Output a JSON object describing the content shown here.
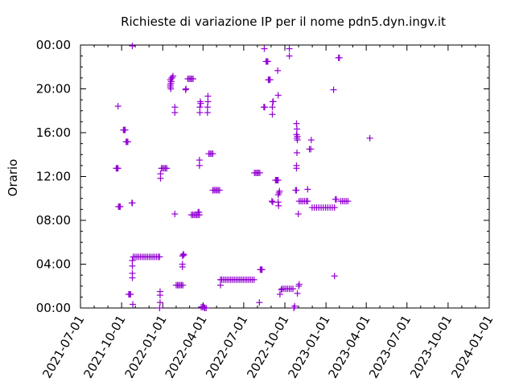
{
  "chart_data": {
    "type": "scatter",
    "title": "Richieste di variazione IP per il nome pdn5.dyn.ingv.it",
    "xlabel": "",
    "ylabel": "Orario",
    "x_ticks": [
      "2021-07-01",
      "2021-10-01",
      "2022-01-01",
      "2022-04-01",
      "2022-07-01",
      "2022-10-01",
      "2023-01-01",
      "2023-04-01",
      "2023-07-01",
      "2023-10-01",
      "2024-01-01"
    ],
    "y_ticks": [
      "00:00",
      "04:00",
      "08:00",
      "12:00",
      "16:00",
      "20:00",
      "00:00"
    ],
    "xlim": [
      "2021-07-01",
      "2024-01-01"
    ],
    "ylim": [
      0,
      24
    ],
    "grid": false,
    "color": "#9400d3",
    "series": [
      {
        "points": [
          [
            "2021-09-19",
            "12:45"
          ],
          [
            "2021-09-21",
            "12:45"
          ],
          [
            "2021-09-23",
            "12:45"
          ],
          [
            "2021-09-23",
            "18:25"
          ],
          [
            "2021-09-24",
            "09:15"
          ],
          [
            "2021-09-26",
            "09:15"
          ],
          [
            "2021-09-28",
            "09:15"
          ],
          [
            "2021-10-05",
            "16:15"
          ],
          [
            "2021-10-07",
            "16:15"
          ],
          [
            "2021-10-09",
            "16:15"
          ],
          [
            "2021-10-11",
            "15:10"
          ],
          [
            "2021-10-13",
            "15:10"
          ],
          [
            "2021-10-15",
            "15:10"
          ],
          [
            "2021-10-17",
            "01:15"
          ],
          [
            "2021-10-19",
            "01:15"
          ],
          [
            "2021-10-21",
            "01:15"
          ],
          [
            "2021-10-24",
            "09:35"
          ],
          [
            "2021-10-25",
            "09:35"
          ],
          [
            "2021-10-25",
            "23:55"
          ],
          [
            "2021-10-26",
            "00:20"
          ],
          [
            "2021-10-25",
            "04:20"
          ],
          [
            "2021-10-25",
            "03:50"
          ],
          [
            "2021-10-25",
            "03:10"
          ],
          [
            "2021-10-25",
            "02:45"
          ],
          [
            "2021-10-27",
            "04:40"
          ],
          [
            "2021-10-31",
            "04:40"
          ],
          [
            "2021-11-04",
            "04:40"
          ],
          [
            "2021-11-08",
            "04:40"
          ],
          [
            "2021-11-12",
            "04:40"
          ],
          [
            "2021-11-16",
            "04:40"
          ],
          [
            "2021-11-20",
            "04:40"
          ],
          [
            "2021-11-24",
            "04:40"
          ],
          [
            "2021-11-28",
            "04:40"
          ],
          [
            "2021-12-02",
            "04:40"
          ],
          [
            "2021-12-06",
            "04:40"
          ],
          [
            "2021-12-10",
            "04:40"
          ],
          [
            "2021-12-14",
            "04:40"
          ],
          [
            "2021-12-18",
            "04:40"
          ],
          [
            "2021-12-22",
            "04:40"
          ],
          [
            "2021-12-25",
            "04:40"
          ],
          [
            "2021-12-25",
            "00:00"
          ],
          [
            "2021-12-26",
            "01:30"
          ],
          [
            "2021-12-26",
            "01:10"
          ],
          [
            "2021-12-26",
            "00:30"
          ],
          [
            "2021-12-27",
            "12:15"
          ],
          [
            "2021-12-27",
            "11:50"
          ],
          [
            "2021-12-29",
            "12:45"
          ],
          [
            "2022-01-01",
            "12:45"
          ],
          [
            "2022-01-04",
            "12:45"
          ],
          [
            "2022-01-07",
            "12:45"
          ],
          [
            "2022-01-10",
            "12:45"
          ],
          [
            "2022-01-18",
            "20:20"
          ],
          [
            "2022-01-18",
            "20:50"
          ],
          [
            "2022-01-18",
            "20:10"
          ],
          [
            "2022-01-19",
            "20:30"
          ],
          [
            "2022-01-19",
            "20:00"
          ],
          [
            "2022-01-20",
            "20:40"
          ],
          [
            "2022-01-21",
            "21:00"
          ],
          [
            "2022-01-22",
            "21:00"
          ],
          [
            "2022-01-24",
            "21:10"
          ],
          [
            "2022-01-28",
            "08:35"
          ],
          [
            "2022-01-28",
            "18:20"
          ],
          [
            "2022-01-28",
            "17:50"
          ],
          [
            "2022-01-31",
            "02:05"
          ],
          [
            "2022-02-03",
            "02:05"
          ],
          [
            "2022-02-06",
            "02:05"
          ],
          [
            "2022-02-09",
            "02:05"
          ],
          [
            "2022-02-12",
            "02:05"
          ],
          [
            "2022-02-15",
            "02:05"
          ],
          [
            "2022-02-14",
            "04:45"
          ],
          [
            "2022-02-14",
            "04:00"
          ],
          [
            "2022-02-14",
            "03:45"
          ],
          [
            "2022-02-16",
            "04:55"
          ],
          [
            "2022-02-17",
            "04:50"
          ],
          [
            "2022-02-21",
            "19:55"
          ],
          [
            "2022-02-22",
            "20:00"
          ],
          [
            "2022-02-26",
            "20:55"
          ],
          [
            "2022-03-01",
            "20:55"
          ],
          [
            "2022-03-04",
            "20:55"
          ],
          [
            "2022-03-07",
            "20:55"
          ],
          [
            "2022-03-10",
            "20:55"
          ],
          [
            "2022-03-06",
            "08:30"
          ],
          [
            "2022-03-09",
            "08:30"
          ],
          [
            "2022-03-12",
            "08:30"
          ],
          [
            "2022-03-15",
            "08:30"
          ],
          [
            "2022-03-18",
            "08:30"
          ],
          [
            "2022-03-21",
            "08:30"
          ],
          [
            "2022-03-24",
            "08:30"
          ],
          [
            "2022-03-21",
            "08:45"
          ],
          [
            "2022-03-23",
            "08:45"
          ],
          [
            "2022-03-24",
            "13:00"
          ],
          [
            "2022-03-24",
            "13:30"
          ],
          [
            "2022-03-25",
            "18:20"
          ],
          [
            "2022-03-25",
            "17:50"
          ],
          [
            "2022-03-26",
            "18:50"
          ],
          [
            "2022-03-27",
            "18:40"
          ],
          [
            "2022-03-28",
            "00:05"
          ],
          [
            "2022-03-31",
            "00:05"
          ],
          [
            "2022-04-03",
            "00:05"
          ],
          [
            "2022-04-05",
            "00:00"
          ],
          [
            "2022-04-08",
            "00:00"
          ],
          [
            "2022-04-12",
            "19:20"
          ],
          [
            "2022-04-12",
            "18:50"
          ],
          [
            "2022-04-11",
            "18:20"
          ],
          [
            "2022-04-11",
            "17:50"
          ],
          [
            "2022-04-14",
            "14:05"
          ],
          [
            "2022-04-17",
            "14:05"
          ],
          [
            "2022-04-20",
            "14:05"
          ],
          [
            "2022-04-23",
            "14:05"
          ],
          [
            "2022-04-23",
            "10:45"
          ],
          [
            "2022-04-26",
            "10:45"
          ],
          [
            "2022-04-29",
            "10:45"
          ],
          [
            "2022-05-02",
            "10:45"
          ],
          [
            "2022-05-05",
            "10:45"
          ],
          [
            "2022-05-08",
            "10:45"
          ],
          [
            "2022-05-10",
            "02:05"
          ],
          [
            "2022-05-10",
            "02:35"
          ],
          [
            "2022-05-13",
            "02:35"
          ],
          [
            "2022-05-17",
            "02:35"
          ],
          [
            "2022-05-21",
            "02:35"
          ],
          [
            "2022-05-25",
            "02:35"
          ],
          [
            "2022-05-29",
            "02:35"
          ],
          [
            "2022-06-02",
            "02:35"
          ],
          [
            "2022-06-06",
            "02:35"
          ],
          [
            "2022-06-10",
            "02:35"
          ],
          [
            "2022-06-14",
            "02:35"
          ],
          [
            "2022-06-18",
            "02:35"
          ],
          [
            "2022-06-22",
            "02:35"
          ],
          [
            "2022-06-26",
            "02:35"
          ],
          [
            "2022-06-30",
            "02:35"
          ],
          [
            "2022-07-04",
            "02:35"
          ],
          [
            "2022-07-08",
            "02:35"
          ],
          [
            "2022-07-12",
            "02:35"
          ],
          [
            "2022-07-16",
            "02:35"
          ],
          [
            "2022-07-20",
            "02:35"
          ],
          [
            "2022-07-24",
            "02:35"
          ],
          [
            "2022-07-25",
            "12:20"
          ],
          [
            "2022-07-28",
            "12:20"
          ],
          [
            "2022-07-31",
            "12:20"
          ],
          [
            "2022-08-03",
            "12:20"
          ],
          [
            "2022-08-06",
            "12:20"
          ],
          [
            "2022-08-05",
            "00:30"
          ],
          [
            "2022-08-07",
            "03:30"
          ],
          [
            "2022-08-09",
            "03:30"
          ],
          [
            "2022-08-11",
            "03:30"
          ],
          [
            "2022-08-15",
            "18:20"
          ],
          [
            "2022-08-17",
            "18:20"
          ],
          [
            "2022-08-16",
            "23:40"
          ],
          [
            "2022-08-20",
            "22:30"
          ],
          [
            "2022-08-22",
            "22:30"
          ],
          [
            "2022-08-24",
            "22:30"
          ],
          [
            "2022-08-25",
            "20:50"
          ],
          [
            "2022-08-27",
            "20:50"
          ],
          [
            "2022-08-29",
            "20:50"
          ],
          [
            "2022-09-03",
            "18:20"
          ],
          [
            "2022-09-03",
            "17:40"
          ],
          [
            "2022-09-04",
            "18:50"
          ],
          [
            "2022-09-05",
            "18:50"
          ],
          [
            "2022-09-02",
            "09:45"
          ],
          [
            "2022-09-04",
            "09:40"
          ],
          [
            "2022-09-10",
            "11:40"
          ],
          [
            "2022-09-12",
            "11:40"
          ],
          [
            "2022-09-14",
            "11:40"
          ],
          [
            "2022-09-16",
            "11:40"
          ],
          [
            "2022-09-15",
            "21:40"
          ],
          [
            "2022-09-16",
            "19:25"
          ],
          [
            "2022-09-16",
            "10:20"
          ],
          [
            "2022-09-16",
            "09:40"
          ],
          [
            "2022-09-17",
            "09:20"
          ],
          [
            "2022-09-18",
            "10:30"
          ],
          [
            "2022-09-19",
            "10:40"
          ],
          [
            "2022-09-23",
            "01:40"
          ],
          [
            "2022-09-20",
            "01:15"
          ],
          [
            "2022-09-25",
            "01:45"
          ],
          [
            "2022-09-29",
            "01:45"
          ],
          [
            "2022-10-03",
            "01:45"
          ],
          [
            "2022-10-07",
            "01:45"
          ],
          [
            "2022-10-11",
            "01:45"
          ],
          [
            "2022-10-15",
            "01:45"
          ],
          [
            "2022-10-19",
            "01:45"
          ],
          [
            "2022-10-11",
            "23:40"
          ],
          [
            "2022-10-11",
            "23:00"
          ],
          [
            "2022-10-21",
            "00:00"
          ],
          [
            "2022-10-23",
            "00:10"
          ],
          [
            "2022-10-25",
            "10:45"
          ],
          [
            "2022-10-27",
            "10:45"
          ],
          [
            "2022-10-27",
            "16:50"
          ],
          [
            "2022-10-28",
            "16:20"
          ],
          [
            "2022-10-27",
            "15:50"
          ],
          [
            "2022-10-28",
            "15:30"
          ],
          [
            "2022-10-28",
            "14:10"
          ],
          [
            "2022-10-27",
            "13:00"
          ],
          [
            "2022-10-27",
            "12:45"
          ],
          [
            "2022-10-29",
            "15:40"
          ],
          [
            "2022-10-29",
            "15:20"
          ],
          [
            "2022-10-29",
            "01:20"
          ],
          [
            "2022-11-01",
            "02:00"
          ],
          [
            "2022-11-02",
            "02:10"
          ],
          [
            "2022-10-31",
            "08:35"
          ],
          [
            "2022-11-02",
            "09:45"
          ],
          [
            "2022-11-06",
            "09:45"
          ],
          [
            "2022-11-10",
            "09:45"
          ],
          [
            "2022-11-14",
            "09:45"
          ],
          [
            "2022-11-18",
            "09:45"
          ],
          [
            "2022-11-21",
            "09:45"
          ],
          [
            "2022-11-25",
            "14:30"
          ],
          [
            "2022-11-28",
            "14:30"
          ],
          [
            "2022-11-29",
            "15:20"
          ],
          [
            "2022-11-21",
            "10:50"
          ],
          [
            "2022-12-01",
            "09:10"
          ],
          [
            "2022-12-06",
            "09:10"
          ],
          [
            "2022-12-11",
            "09:10"
          ],
          [
            "2022-12-16",
            "09:10"
          ],
          [
            "2022-12-21",
            "09:10"
          ],
          [
            "2022-12-26",
            "09:10"
          ],
          [
            "2022-12-31",
            "09:10"
          ],
          [
            "2023-01-05",
            "09:10"
          ],
          [
            "2023-01-10",
            "09:10"
          ],
          [
            "2023-01-15",
            "09:10"
          ],
          [
            "2023-01-20",
            "09:10"
          ],
          [
            "2023-01-18",
            "19:55"
          ],
          [
            "2023-01-22",
            "09:55"
          ],
          [
            "2023-01-24",
            "09:55"
          ],
          [
            "2023-01-20",
            "02:55"
          ],
          [
            "2023-01-29",
            "22:50"
          ],
          [
            "2023-01-31",
            "22:50"
          ],
          [
            "2023-02-03",
            "09:45"
          ],
          [
            "2023-02-07",
            "09:45"
          ],
          [
            "2023-02-11",
            "09:45"
          ],
          [
            "2023-02-15",
            "09:45"
          ],
          [
            "2023-02-19",
            "09:45"
          ],
          [
            "2023-04-09",
            "15:30"
          ]
        ]
      }
    ]
  }
}
